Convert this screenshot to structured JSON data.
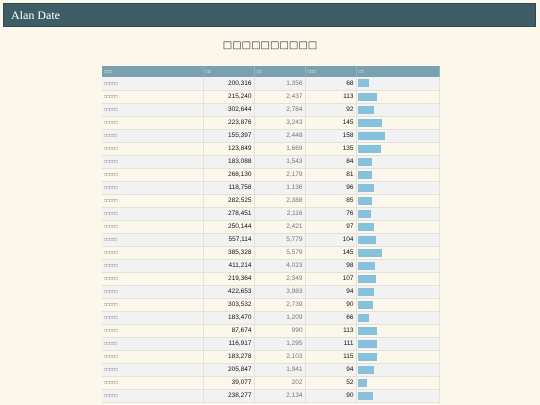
{
  "header": {
    "title": "Alan Date"
  },
  "page": {
    "title": "□□□□□□□□□□"
  },
  "table": {
    "columns": [
      "□□□",
      "□□",
      "□□",
      "□□□",
      "□□"
    ],
    "rows": [
      {
        "name": "□□□□□",
        "col1": "200,316",
        "col2": "1,356",
        "col3": "68",
        "bar": 68
      },
      {
        "name": "□□□□□",
        "col1": "215,240",
        "col2": "2,437",
        "col3": "113",
        "bar": 113
      },
      {
        "name": "□□□□□",
        "col1": "302,644",
        "col2": "2,784",
        "col3": "92",
        "bar": 92
      },
      {
        "name": "□□□□□",
        "col1": "223,876",
        "col2": "3,243",
        "col3": "145",
        "bar": 145
      },
      {
        "name": "□□□□□",
        "col1": "155,397",
        "col2": "2,448",
        "col3": "158",
        "bar": 158
      },
      {
        "name": "□□□□□",
        "col1": "123,849",
        "col2": "1,669",
        "col3": "135",
        "bar": 135
      },
      {
        "name": "□□□□□",
        "col1": "183,088",
        "col2": "1,543",
        "col3": "84",
        "bar": 84
      },
      {
        "name": "□□□□□",
        "col1": "268,130",
        "col2": "2,179",
        "col3": "81",
        "bar": 81
      },
      {
        "name": "□□□□□",
        "col1": "118,758",
        "col2": "1,136",
        "col3": "96",
        "bar": 96
      },
      {
        "name": "□□□□□",
        "col1": "282,525",
        "col2": "2,388",
        "col3": "85",
        "bar": 85
      },
      {
        "name": "□□□□□",
        "col1": "278,451",
        "col2": "2,116",
        "col3": "76",
        "bar": 76
      },
      {
        "name": "□□□□□",
        "col1": "250,144",
        "col2": "2,421",
        "col3": "97",
        "bar": 97
      },
      {
        "name": "□□□□□",
        "col1": "557,114",
        "col2": "5,779",
        "col3": "104",
        "bar": 104
      },
      {
        "name": "□□□□□",
        "col1": "385,328",
        "col2": "5,579",
        "col3": "145",
        "bar": 145
      },
      {
        "name": "□□□□□",
        "col1": "411,214",
        "col2": "4,023",
        "col3": "98",
        "bar": 98
      },
      {
        "name": "□□□□□",
        "col1": "219,364",
        "col2": "2,349",
        "col3": "107",
        "bar": 107
      },
      {
        "name": "□□□□□",
        "col1": "422,653",
        "col2": "3,983",
        "col3": "94",
        "bar": 94
      },
      {
        "name": "□□□□□",
        "col1": "303,532",
        "col2": "2,739",
        "col3": "90",
        "bar": 90
      },
      {
        "name": "□□□□□",
        "col1": "183,470",
        "col2": "1,209",
        "col3": "66",
        "bar": 66
      },
      {
        "name": "□□□□□",
        "col1": "87,674",
        "col2": "990",
        "col3": "113",
        "bar": 113
      },
      {
        "name": "□□□□□",
        "col1": "116,917",
        "col2": "1,295",
        "col3": "111",
        "bar": 111
      },
      {
        "name": "□□□□□",
        "col1": "183,278",
        "col2": "2,103",
        "col3": "115",
        "bar": 115
      },
      {
        "name": "□□□□□",
        "col1": "205,847",
        "col2": "1,941",
        "col3": "94",
        "bar": 94
      },
      {
        "name": "□□□□□",
        "col1": "39,077",
        "col2": "202",
        "col3": "52",
        "bar": 52
      },
      {
        "name": "□□□□□",
        "col1": "238,277",
        "col2": "2,134",
        "col3": "90",
        "bar": 90
      }
    ]
  },
  "colors": {
    "header_bg": "#3f5d67",
    "table_header_bg": "#79a1b0",
    "bar": "#88c1db",
    "page_bg": "#fcf7eb"
  }
}
